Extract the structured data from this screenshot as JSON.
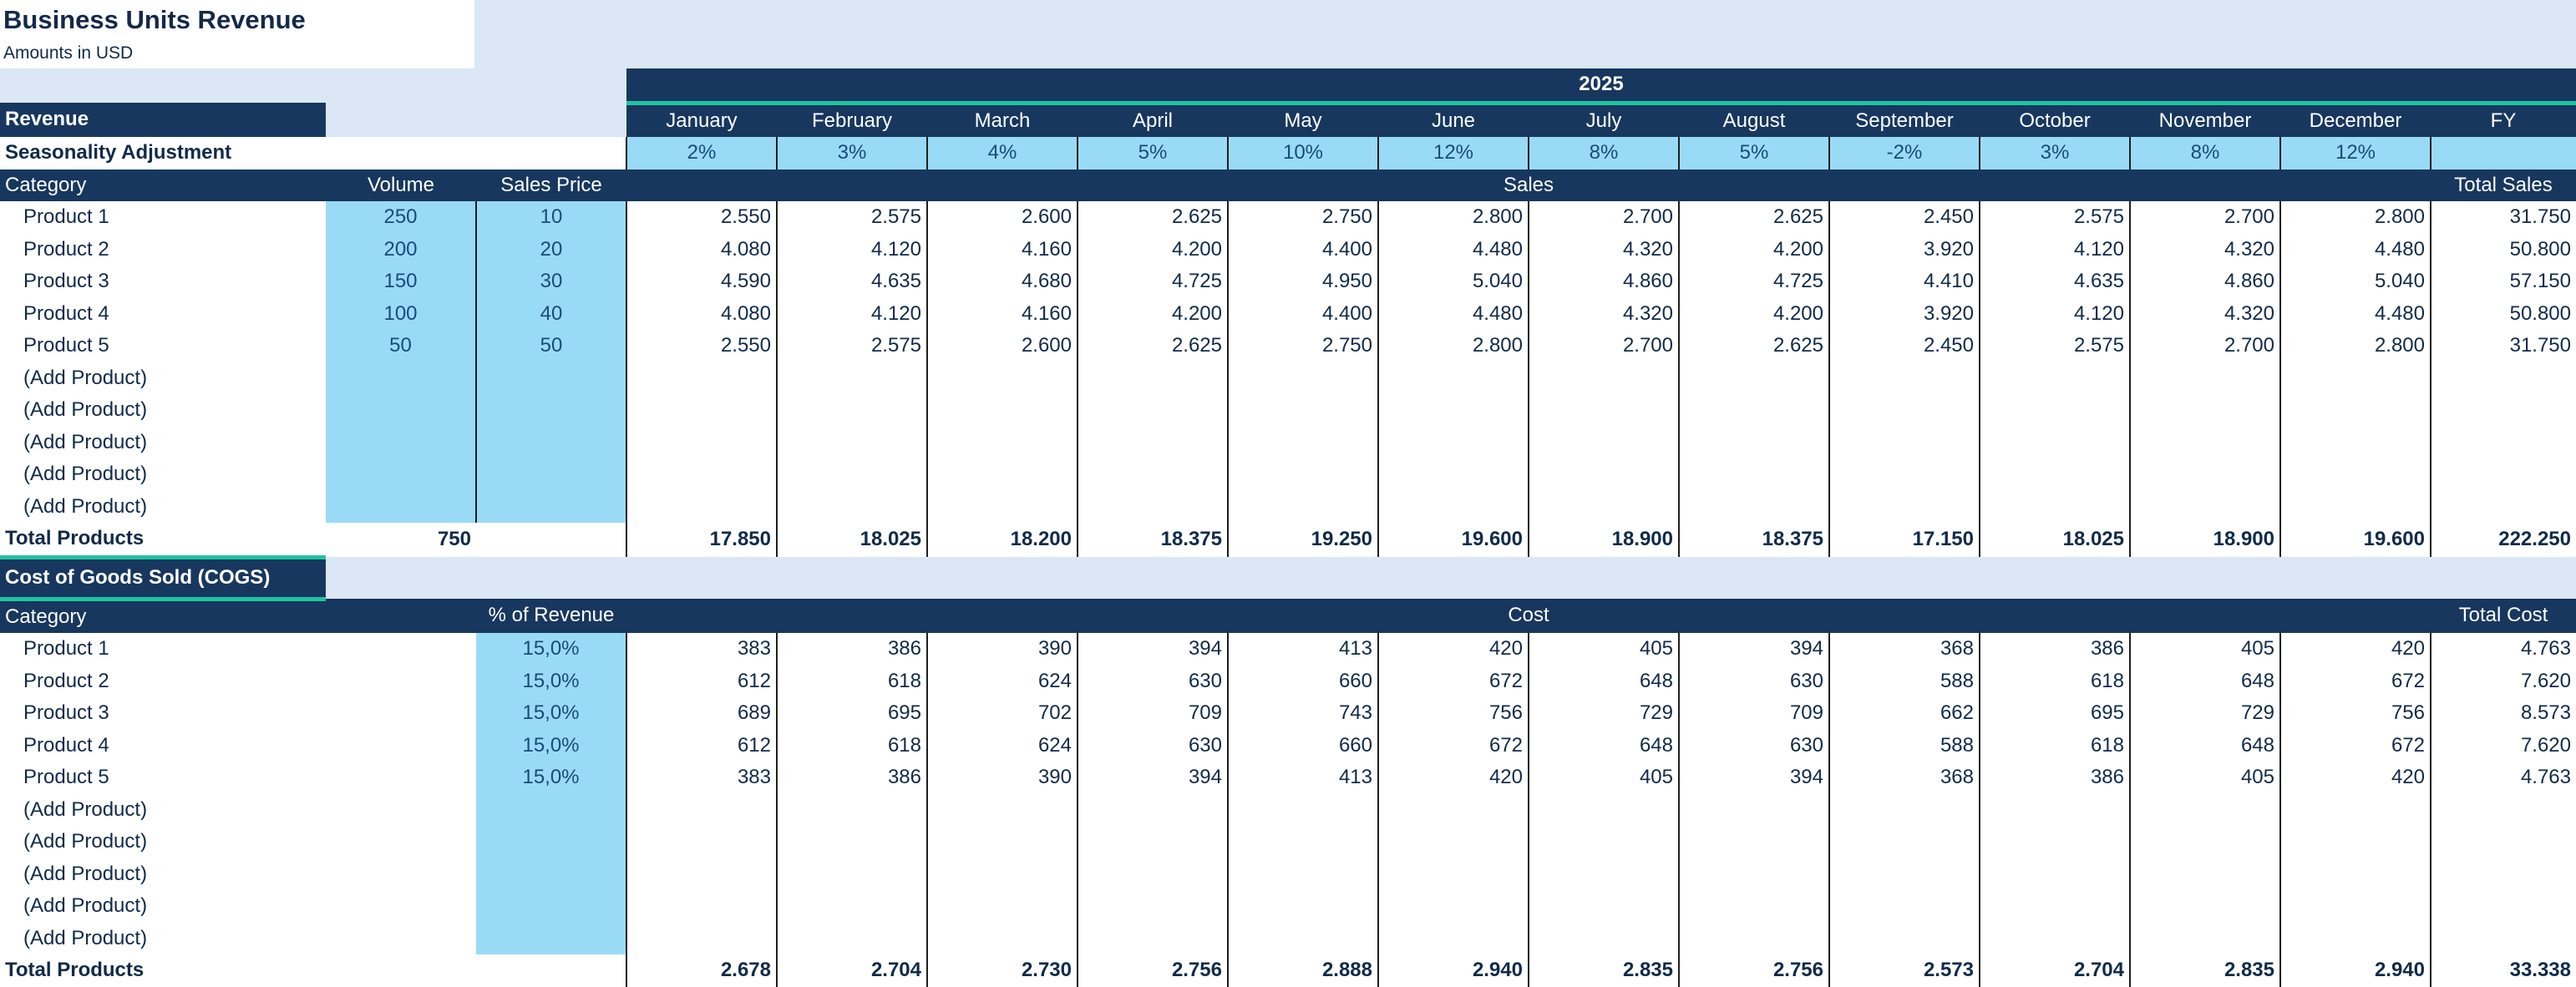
{
  "header": {
    "title": "Business Units Revenue",
    "subtitle": "Amounts in USD"
  },
  "revenue": {
    "year": "2025",
    "section_label": "Revenue",
    "months": [
      "January",
      "February",
      "March",
      "April",
      "May",
      "June",
      "July",
      "August",
      "September",
      "October",
      "November",
      "December"
    ],
    "fy_label": "FY",
    "seasonality_label": "Seasonality Adjustment",
    "seasonality": [
      "2%",
      "3%",
      "4%",
      "5%",
      "10%",
      "12%",
      "8%",
      "5%",
      "-2%",
      "3%",
      "8%",
      "12%"
    ],
    "col_category": "Category",
    "col_volume": "Volume",
    "col_price": "Sales Price",
    "col_sales": "Sales",
    "col_total": "Total Sales",
    "rows": [
      {
        "name": "Product 1",
        "volume": "250",
        "price": "10",
        "values": [
          "2.550",
          "2.575",
          "2.600",
          "2.625",
          "2.750",
          "2.800",
          "2.700",
          "2.625",
          "2.450",
          "2.575",
          "2.700",
          "2.800"
        ],
        "total": "31.750"
      },
      {
        "name": "Product 2",
        "volume": "200",
        "price": "20",
        "values": [
          "4.080",
          "4.120",
          "4.160",
          "4.200",
          "4.400",
          "4.480",
          "4.320",
          "4.200",
          "3.920",
          "4.120",
          "4.320",
          "4.480"
        ],
        "total": "50.800"
      },
      {
        "name": "Product 3",
        "volume": "150",
        "price": "30",
        "values": [
          "4.590",
          "4.635",
          "4.680",
          "4.725",
          "4.950",
          "5.040",
          "4.860",
          "4.725",
          "4.410",
          "4.635",
          "4.860",
          "5.040"
        ],
        "total": "57.150"
      },
      {
        "name": "Product 4",
        "volume": "100",
        "price": "40",
        "values": [
          "4.080",
          "4.120",
          "4.160",
          "4.200",
          "4.400",
          "4.480",
          "4.320",
          "4.200",
          "3.920",
          "4.120",
          "4.320",
          "4.480"
        ],
        "total": "50.800"
      },
      {
        "name": "Product 5",
        "volume": "50",
        "price": "50",
        "values": [
          "2.550",
          "2.575",
          "2.600",
          "2.625",
          "2.750",
          "2.800",
          "2.700",
          "2.625",
          "2.450",
          "2.575",
          "2.700",
          "2.800"
        ],
        "total": "31.750"
      }
    ],
    "placeholder_label": "(Add Product)",
    "placeholder_count": 5,
    "total_label": "Total Products",
    "total_volume": "750",
    "totals": [
      "17.850",
      "18.025",
      "18.200",
      "18.375",
      "19.250",
      "19.600",
      "18.900",
      "18.375",
      "17.150",
      "18.025",
      "18.900",
      "19.600"
    ],
    "grand_total": "222.250"
  },
  "cogs": {
    "section_label": "Cost of Goods Sold (COGS)",
    "col_category": "Category",
    "col_pct": "% of Revenue",
    "col_cost": "Cost",
    "col_total": "Total Cost",
    "rows": [
      {
        "name": "Product 1",
        "pct": "15,0%",
        "values": [
          "383",
          "386",
          "390",
          "394",
          "413",
          "420",
          "405",
          "394",
          "368",
          "386",
          "405",
          "420"
        ],
        "total": "4.763"
      },
      {
        "name": "Product 2",
        "pct": "15,0%",
        "values": [
          "612",
          "618",
          "624",
          "630",
          "660",
          "672",
          "648",
          "630",
          "588",
          "618",
          "648",
          "672"
        ],
        "total": "7.620"
      },
      {
        "name": "Product 3",
        "pct": "15,0%",
        "values": [
          "689",
          "695",
          "702",
          "709",
          "743",
          "756",
          "729",
          "709",
          "662",
          "695",
          "729",
          "756"
        ],
        "total": "8.573"
      },
      {
        "name": "Product 4",
        "pct": "15,0%",
        "values": [
          "612",
          "618",
          "624",
          "630",
          "660",
          "672",
          "648",
          "630",
          "588",
          "618",
          "648",
          "672"
        ],
        "total": "7.620"
      },
      {
        "name": "Product 5",
        "pct": "15,0%",
        "values": [
          "383",
          "386",
          "390",
          "394",
          "413",
          "420",
          "405",
          "394",
          "368",
          "386",
          "405",
          "420"
        ],
        "total": "4.763"
      }
    ],
    "placeholder_label": "(Add Product)",
    "placeholder_count": 5,
    "total_label": "Total Products",
    "totals": [
      "2.678",
      "2.704",
      "2.730",
      "2.756",
      "2.888",
      "2.940",
      "2.835",
      "2.756",
      "2.573",
      "2.704",
      "2.835",
      "2.940"
    ],
    "grand_total": "33.338"
  }
}
